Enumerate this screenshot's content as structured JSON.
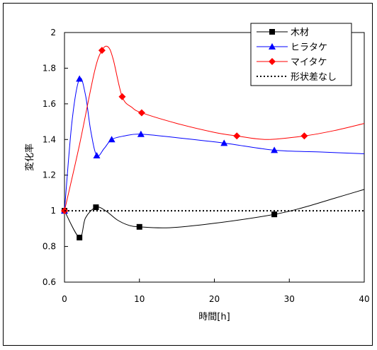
{
  "chart_data": {
    "type": "line",
    "title": "",
    "xlabel": "時間[h]",
    "ylabel": "変化率",
    "xlim": [
      0,
      40
    ],
    "ylim": [
      0.6,
      2.0
    ],
    "x_ticks": [
      "0",
      "10",
      "20",
      "30",
      "40"
    ],
    "y_ticks": [
      "0.6",
      "0.8",
      "1",
      "1.2",
      "1.4",
      "1.6",
      "1.8",
      "2"
    ],
    "legend_position": "top-right",
    "grid": false,
    "series": [
      {
        "name": "木材",
        "color": "#000000",
        "marker": "square",
        "points": [
          [
            0,
            1.0
          ],
          [
            2,
            0.85
          ],
          [
            4.2,
            1.02
          ],
          [
            10,
            0.91
          ],
          [
            28,
            0.98
          ]
        ],
        "curve": [
          [
            0,
            1.0
          ],
          [
            2,
            0.85
          ],
          [
            2.8,
            0.96
          ],
          [
            4.2,
            1.02
          ],
          [
            5.5,
            1.0
          ],
          [
            7,
            0.95
          ],
          [
            8.5,
            0.92
          ],
          [
            10,
            0.91
          ],
          [
            14,
            0.905
          ],
          [
            20,
            0.93
          ],
          [
            28,
            0.98
          ],
          [
            32,
            1.02
          ],
          [
            36,
            1.07
          ],
          [
            40,
            1.12
          ]
        ]
      },
      {
        "name": "ヒラタケ",
        "color": "#0000ff",
        "marker": "triangle",
        "points": [
          [
            0,
            1.0
          ],
          [
            2,
            1.74
          ],
          [
            4.3,
            1.31
          ],
          [
            6.3,
            1.4
          ],
          [
            10.2,
            1.43
          ],
          [
            21.3,
            1.38
          ],
          [
            28,
            1.34
          ]
        ],
        "curve": [
          [
            0,
            1.0
          ],
          [
            1,
            1.5
          ],
          [
            2,
            1.74
          ],
          [
            2.8,
            1.65
          ],
          [
            3.5,
            1.45
          ],
          [
            4.3,
            1.31
          ],
          [
            5.3,
            1.35
          ],
          [
            6.3,
            1.4
          ],
          [
            8,
            1.42
          ],
          [
            10.2,
            1.43
          ],
          [
            15,
            1.41
          ],
          [
            21.3,
            1.38
          ],
          [
            28,
            1.34
          ],
          [
            34,
            1.33
          ],
          [
            40,
            1.32
          ]
        ]
      },
      {
        "name": "マイタケ",
        "color": "#ff0000",
        "marker": "diamond",
        "points": [
          [
            0,
            1.0
          ],
          [
            5,
            1.9
          ],
          [
            7.7,
            1.64
          ],
          [
            10.3,
            1.55
          ],
          [
            23,
            1.42
          ],
          [
            32,
            1.42
          ]
        ],
        "curve": [
          [
            0,
            1.0
          ],
          [
            2,
            1.37
          ],
          [
            4,
            1.78
          ],
          [
            5,
            1.9
          ],
          [
            5.8,
            1.92
          ],
          [
            6.5,
            1.85
          ],
          [
            7.7,
            1.64
          ],
          [
            9,
            1.58
          ],
          [
            10.3,
            1.55
          ],
          [
            15,
            1.49
          ],
          [
            20,
            1.44
          ],
          [
            23,
            1.42
          ],
          [
            27,
            1.4
          ],
          [
            32,
            1.42
          ],
          [
            36,
            1.45
          ],
          [
            40,
            1.49
          ]
        ]
      },
      {
        "name": "形状差なし",
        "color": "#000000",
        "marker": "none",
        "dashed": true,
        "points": [],
        "curve": [
          [
            0,
            1.0
          ],
          [
            40,
            1.0
          ]
        ]
      }
    ]
  }
}
